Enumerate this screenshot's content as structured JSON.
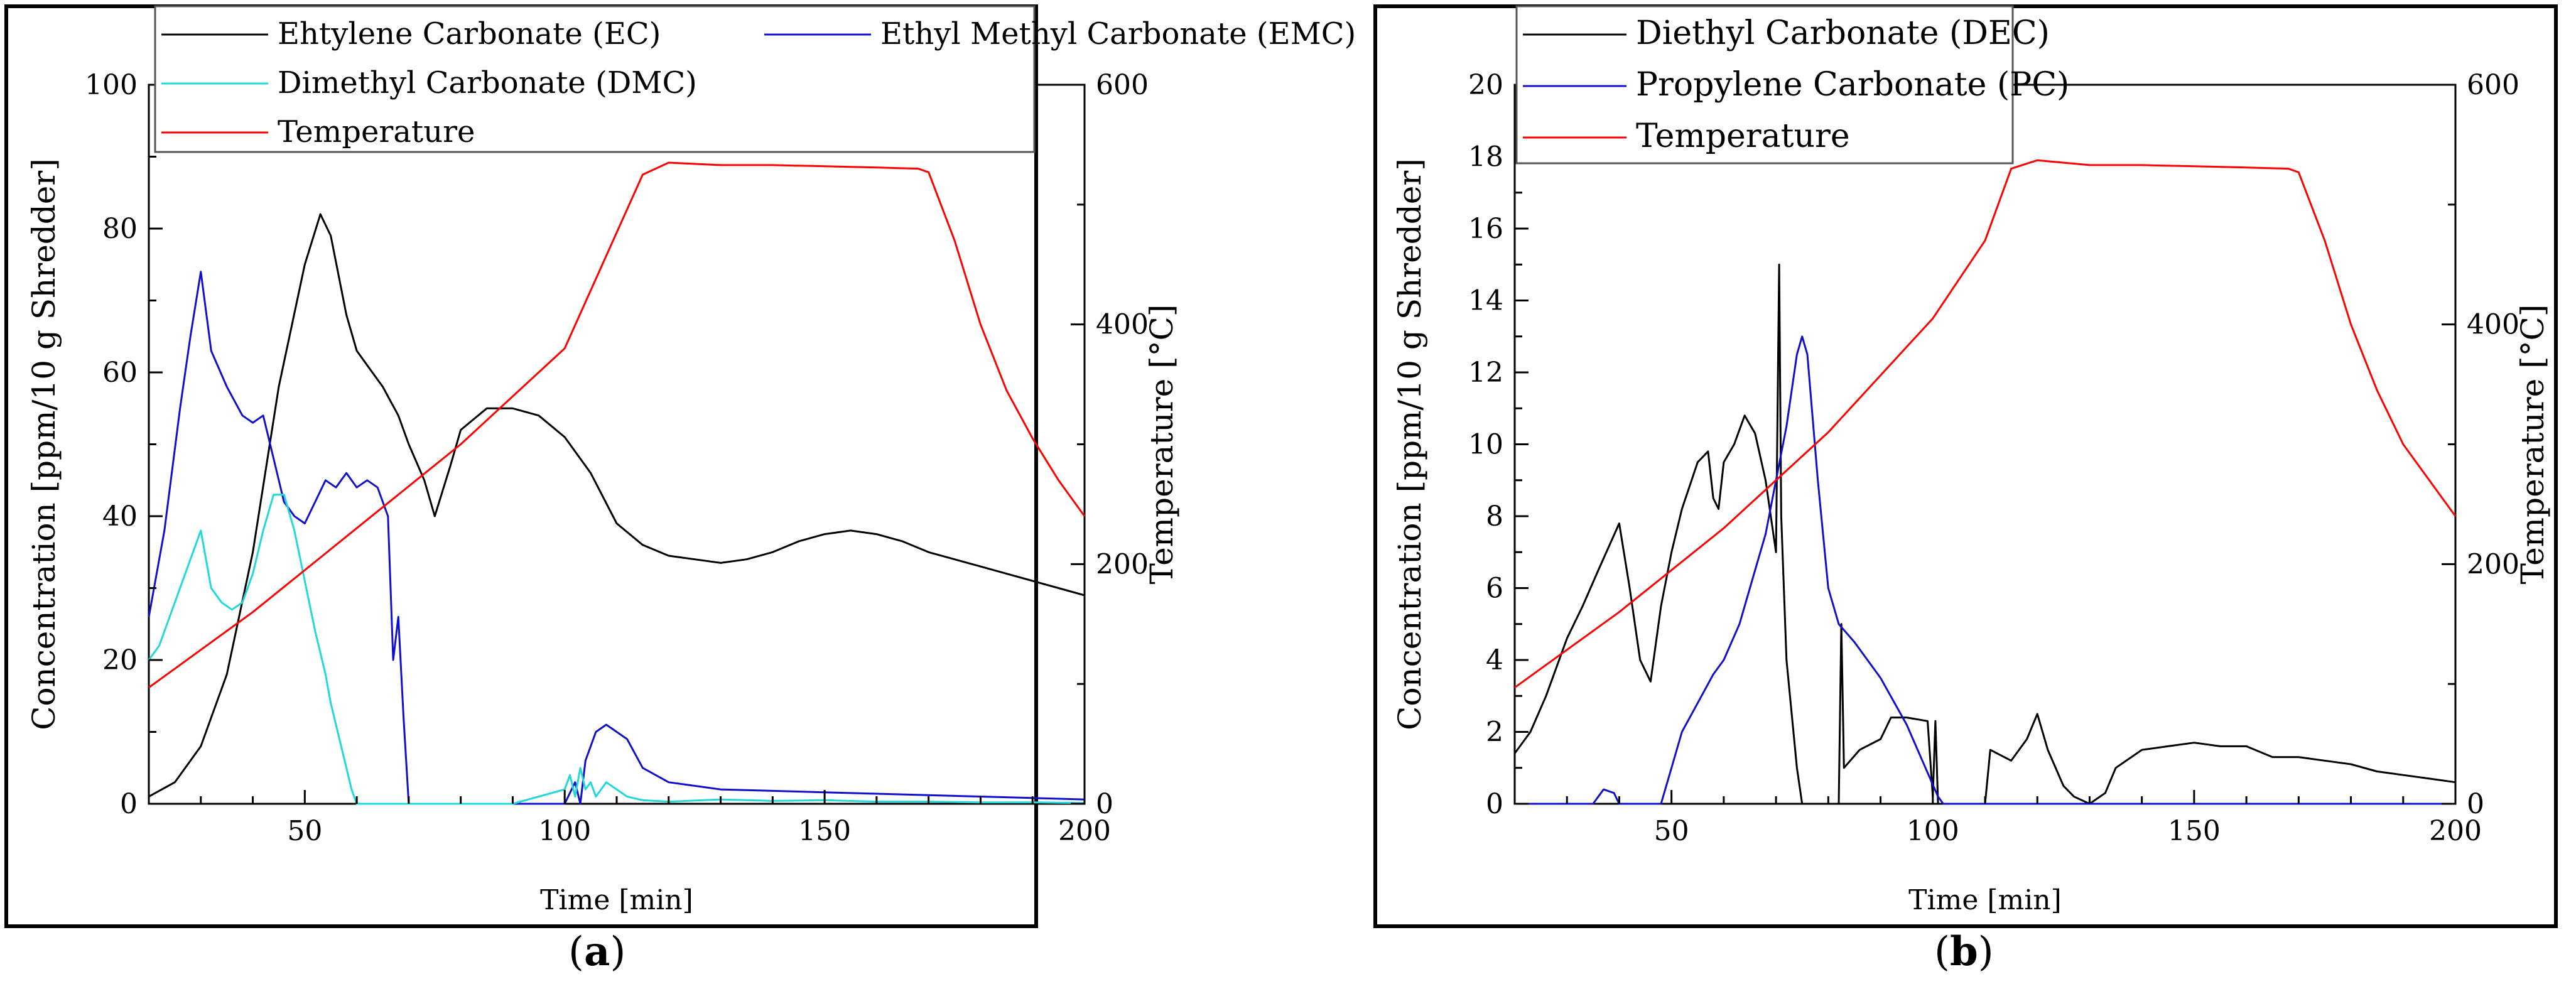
{
  "chart_data": [
    {
      "type": "line",
      "panel_label": "(a)",
      "xlabel": "Time [min]",
      "ylabel": "Concentration [ppm/10 g Shredder]",
      "ylabel_right": "Temperature [°C]",
      "xlim": [
        20,
        200
      ],
      "ylim": [
        0,
        100
      ],
      "ylim_right": [
        0,
        600
      ],
      "xticks": [
        50,
        100,
        150,
        200
      ],
      "yticks": [
        0,
        20,
        40,
        60,
        80,
        100
      ],
      "yticks_right": [
        0,
        200,
        400,
        600
      ],
      "legend": {
        "placement": "top",
        "columns": 2
      },
      "series": [
        {
          "name": "Ehtylene Carbonate (EC)",
          "axis": "left",
          "color": "#000000",
          "x": [
            20,
            25,
            30,
            35,
            40,
            45,
            50,
            53,
            55,
            58,
            60,
            63,
            65,
            68,
            70,
            73,
            75,
            78,
            80,
            85,
            90,
            95,
            100,
            105,
            110,
            115,
            120,
            125,
            130,
            135,
            140,
            145,
            150,
            155,
            160,
            165,
            170,
            175,
            180,
            185,
            190,
            195,
            200
          ],
          "y": [
            1,
            3,
            8,
            18,
            35,
            58,
            75,
            82,
            79,
            68,
            63,
            60,
            58,
            54,
            50,
            45,
            40,
            47,
            52,
            55,
            55,
            54,
            51,
            46,
            39,
            36,
            34.5,
            34,
            33.5,
            34,
            35,
            36.5,
            37.5,
            38,
            37.5,
            36.5,
            35,
            34,
            33,
            32,
            31,
            30,
            29
          ]
        },
        {
          "name": "Ethyl Methyl Carbonate (EMC)",
          "axis": "left",
          "color": "#1010cc",
          "x": [
            20,
            23,
            26,
            28,
            30,
            32,
            35,
            38,
            40,
            42,
            44,
            46,
            48,
            50,
            52,
            54,
            56,
            58,
            60,
            62,
            64,
            66,
            67,
            68,
            69,
            70,
            72,
            80,
            90,
            100,
            102,
            103,
            104,
            106,
            108,
            110,
            112,
            115,
            120,
            125,
            130,
            140,
            150,
            160,
            170,
            180,
            190,
            200
          ],
          "y": [
            26,
            38,
            55,
            65,
            74,
            63,
            58,
            54,
            53,
            54,
            48,
            42,
            40,
            39,
            42,
            45,
            44,
            46,
            44,
            45,
            44,
            40,
            20,
            26,
            12,
            0,
            0,
            0,
            0,
            0,
            3,
            0,
            6,
            10,
            11,
            10,
            9,
            5,
            3,
            2.5,
            2,
            1.8,
            1.6,
            1.4,
            1.2,
            1,
            0.8,
            0.6
          ]
        },
        {
          "name": "Dimethyl Carbonate (DMC)",
          "axis": "left",
          "color": "#22d8d8",
          "x": [
            20,
            22,
            25,
            28,
            30,
            32,
            34,
            36,
            38,
            40,
            42,
            44,
            46,
            48,
            50,
            52,
            54,
            55,
            57,
            58,
            59,
            60,
            65,
            70,
            80,
            90,
            95,
            100,
            101,
            102,
            103,
            104,
            105,
            106,
            108,
            110,
            112,
            115,
            120,
            130,
            140,
            150,
            160,
            170,
            180,
            190,
            200
          ],
          "y": [
            20,
            22,
            28,
            34,
            38,
            30,
            28,
            27,
            28,
            32,
            38,
            43,
            43,
            38,
            31,
            24,
            18,
            14,
            8,
            5,
            2,
            0,
            0,
            0,
            0,
            0,
            1,
            2,
            4,
            1,
            5,
            2,
            3,
            1,
            3,
            2,
            1,
            0.5,
            0.3,
            0.6,
            0.4,
            0.5,
            0.3,
            0.3,
            0.2,
            0.2,
            0.1
          ]
        },
        {
          "name": "Temperature",
          "axis": "right",
          "color": "#ff0000",
          "x": [
            20,
            40,
            60,
            80,
            100,
            115,
            120,
            130,
            140,
            150,
            160,
            168,
            170,
            175,
            180,
            185,
            190,
            195,
            200
          ],
          "y": [
            97,
            160,
            230,
            300,
            380,
            525,
            535,
            533,
            533,
            532,
            531,
            530,
            527,
            470,
            400,
            345,
            305,
            270,
            240
          ]
        }
      ]
    },
    {
      "type": "line",
      "panel_label": "(b)",
      "xlabel": "Time [min]",
      "ylabel": "Concentration [ppm/10 g Shredder]",
      "ylabel_right": "Temperature [°C]",
      "xlim": [
        20,
        200
      ],
      "ylim": [
        0,
        20
      ],
      "ylim_right": [
        0,
        600
      ],
      "xticks": [
        50,
        100,
        150,
        200
      ],
      "yticks": [
        0,
        2,
        4,
        6,
        8,
        10,
        12,
        14,
        16,
        18,
        20
      ],
      "yticks_right": [
        0,
        200,
        400,
        600
      ],
      "legend": {
        "placement": "top-left",
        "columns": 1
      },
      "series": [
        {
          "name": "Diethyl Carbonate (DEC)",
          "axis": "left",
          "color": "#000000",
          "x": [
            20,
            23,
            26,
            30,
            33,
            36,
            40,
            42,
            44,
            46,
            48,
            50,
            52,
            55,
            57,
            58,
            59,
            60,
            62,
            64,
            66,
            68,
            70,
            70.6,
            71,
            72,
            74,
            75,
            80,
            82,
            82.5,
            83,
            86,
            90,
            92,
            95,
            99,
            100,
            100.5,
            101,
            110,
            111,
            115,
            118,
            120,
            122,
            125,
            127,
            130,
            133,
            135,
            140,
            145,
            150,
            155,
            160,
            165,
            170,
            175,
            180,
            185,
            190,
            195,
            200
          ],
          "y": [
            1.4,
            2,
            3,
            4.6,
            5.5,
            6.5,
            7.8,
            6,
            4,
            3.4,
            5.5,
            7,
            8.2,
            9.5,
            9.8,
            8.5,
            8.2,
            9.5,
            10,
            10.8,
            10.3,
            9,
            7,
            15,
            8,
            4,
            1,
            0,
            0,
            0,
            5,
            1,
            1.5,
            1.8,
            2.4,
            2.4,
            2.3,
            0.2,
            2.3,
            0,
            0,
            1.5,
            1.2,
            1.8,
            2.5,
            1.5,
            0.5,
            0.2,
            0,
            0.3,
            1,
            1.5,
            1.6,
            1.7,
            1.6,
            1.6,
            1.3,
            1.3,
            1.2,
            1.1,
            0.9,
            0.8,
            0.7,
            0.6
          ]
        },
        {
          "name": "Propylene Carbonate (PC)",
          "axis": "left",
          "color": "#1010cc",
          "x": [
            20,
            35,
            37,
            39,
            40,
            48,
            50,
            52,
            55,
            58,
            60,
            63,
            66,
            68,
            70,
            72,
            74,
            75,
            76,
            78,
            80,
            82,
            85,
            90,
            95,
            98,
            101,
            102,
            110,
            200
          ],
          "y": [
            0,
            0,
            0.4,
            0.3,
            0,
            0,
            1,
            2,
            2.8,
            3.6,
            4,
            5,
            6.5,
            7.5,
            9,
            10.5,
            12.5,
            13,
            12.5,
            9,
            6,
            5,
            4.5,
            3.5,
            2.2,
            1.2,
            0.2,
            0,
            0,
            0
          ]
        },
        {
          "name": "Temperature",
          "axis": "right",
          "color": "#ff0000",
          "x": [
            20,
            40,
            60,
            80,
            100,
            110,
            115,
            120,
            130,
            140,
            150,
            160,
            168,
            170,
            175,
            180,
            185,
            190,
            195,
            200
          ],
          "y": [
            97,
            160,
            230,
            310,
            405,
            470,
            530,
            537,
            533,
            533,
            532,
            531,
            530,
            527,
            470,
            400,
            345,
            300,
            270,
            240
          ]
        }
      ]
    }
  ]
}
